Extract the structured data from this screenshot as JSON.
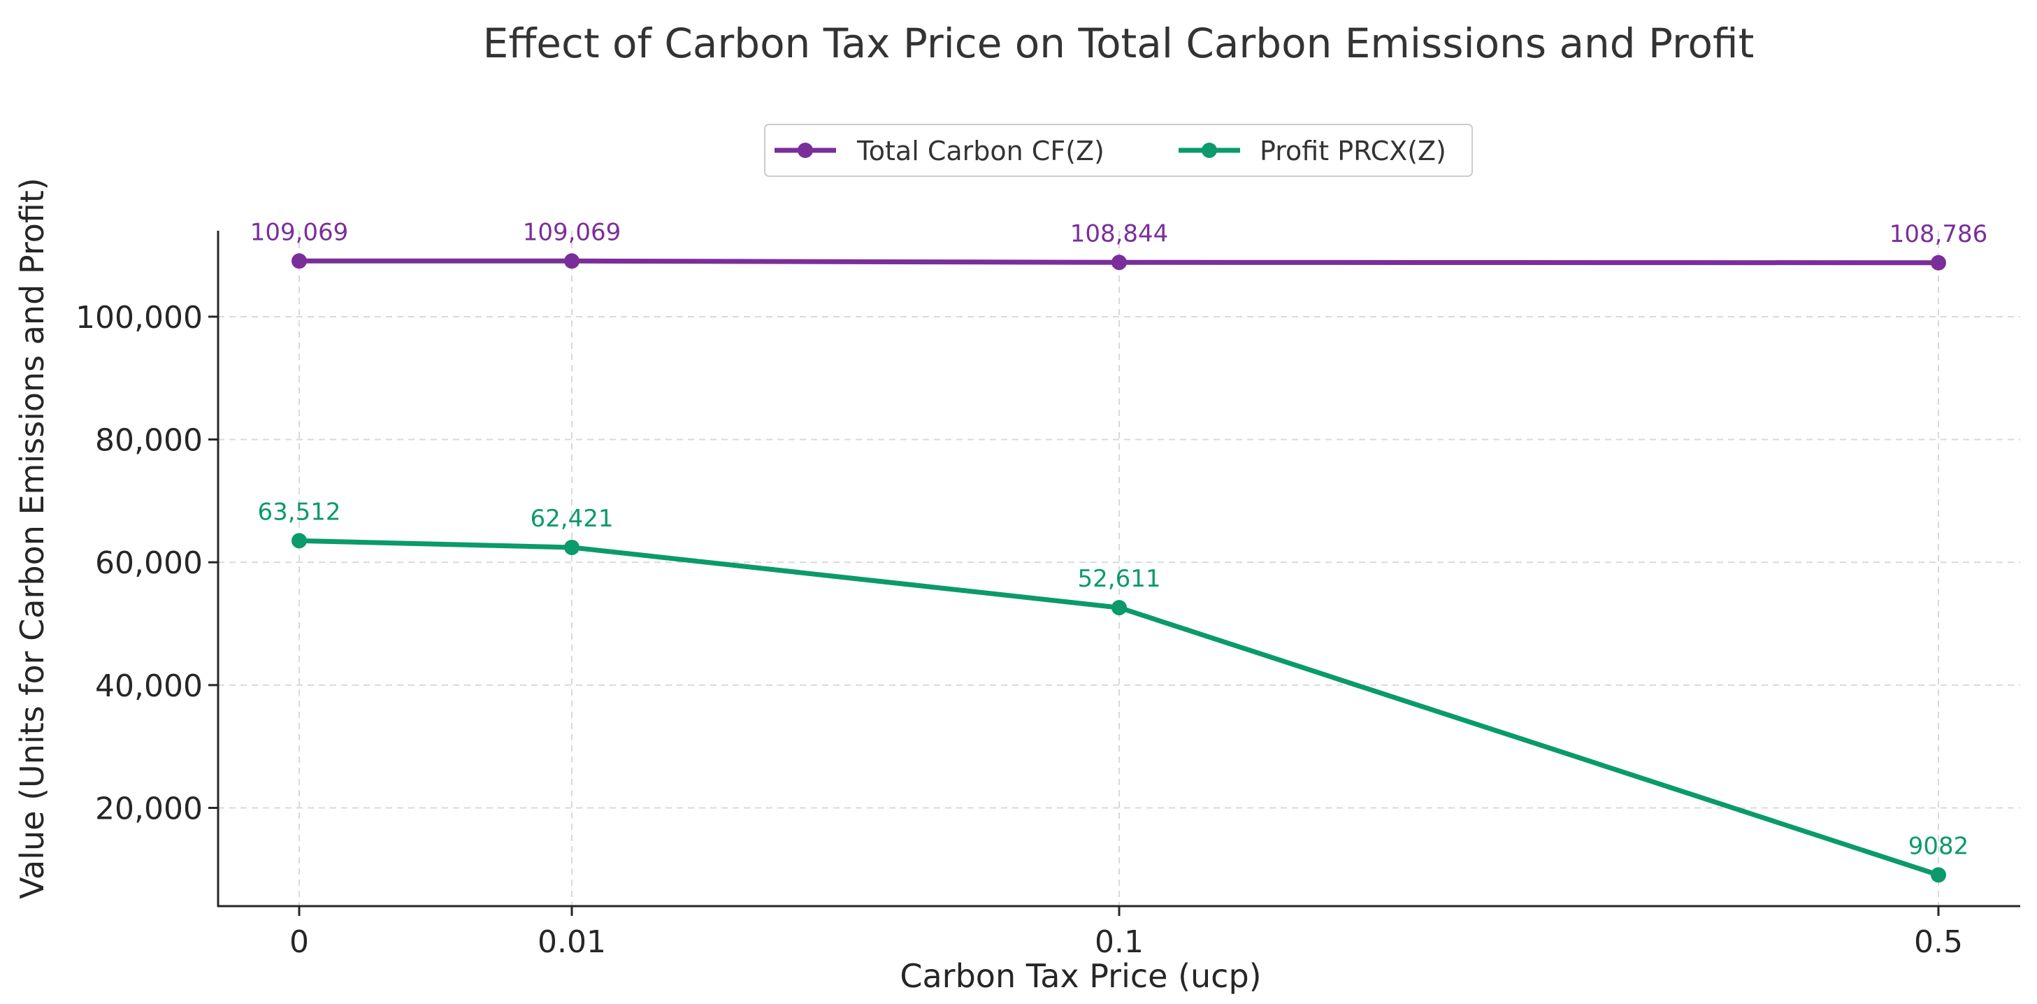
{
  "chart_data": {
    "type": "line",
    "title": "Effect of Carbon Tax Price on Total Carbon Emissions and Profit",
    "xlabel": "Carbon Tax Price (ucp)",
    "ylabel": "Value (Units for Carbon Emissions and Profit)",
    "categories": [
      "0",
      "0.01",
      "0.1",
      "0.5"
    ],
    "y_ticks": [
      "20,000",
      "40,000",
      "60,000",
      "80,000",
      "100,000"
    ],
    "y_tick_values": [
      20000,
      40000,
      60000,
      80000,
      100000
    ],
    "ylim": [
      4000,
      114000
    ],
    "grid": true,
    "legend_position": "top-center",
    "series": [
      {
        "name": "Total Carbon CF(Z)",
        "color": "#7a2e9a",
        "values": [
          109069,
          109069,
          108844,
          108786
        ],
        "labels": [
          "109,069",
          "109,069",
          "108,844",
          "108,786"
        ]
      },
      {
        "name": "Profit PRCX(Z)",
        "color": "#0a9a6c",
        "values": [
          63512,
          62421,
          52611,
          9082
        ],
        "labels": [
          "63,512",
          "62,421",
          "52,611",
          "9082"
        ]
      }
    ]
  }
}
